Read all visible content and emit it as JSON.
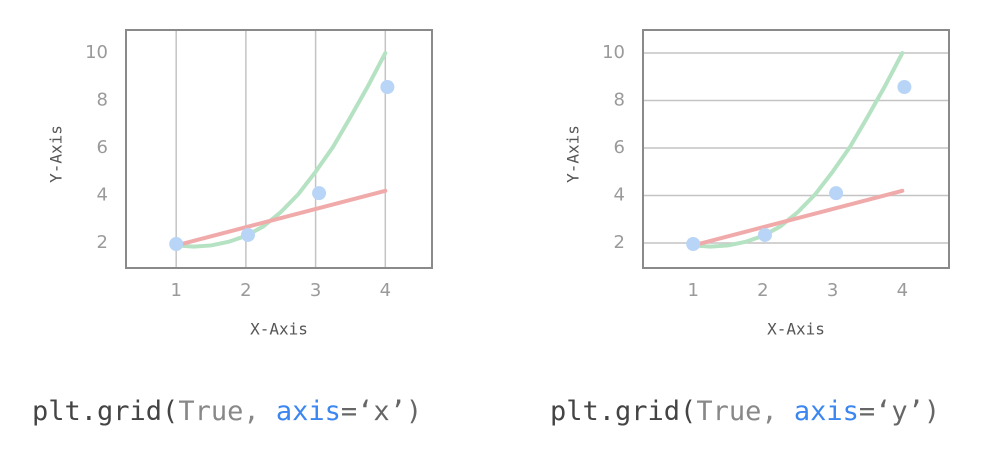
{
  "chart_data": [
    {
      "type": "mixed",
      "xlabel": "X-Axis",
      "ylabel": "Y-Axis",
      "xlim": [
        0.28,
        4.67
      ],
      "ylim": [
        0.95,
        10.97
      ],
      "xticks": [
        1,
        2,
        3,
        4
      ],
      "yticks": [
        2,
        4,
        6,
        8,
        10
      ],
      "grid": true,
      "grid_axis": "x",
      "series": [
        {
          "type": "line",
          "color": "#b5e2c2",
          "x": [
            1,
            1.25,
            1.5,
            1.75,
            2,
            2.25,
            2.5,
            2.75,
            3,
            3.25,
            3.5,
            3.75,
            4
          ],
          "values": [
            1.9,
            1.85,
            1.9,
            2.05,
            2.3,
            2.7,
            3.3,
            4.05,
            5.0,
            6.05,
            7.3,
            8.6,
            10
          ]
        },
        {
          "type": "line",
          "color": "#f0aaaa",
          "x": [
            1,
            4
          ],
          "values": [
            1.9,
            4.2
          ]
        },
        {
          "type": "scatter",
          "color": "#b8d5f7",
          "x": [
            1,
            2.03,
            3.05,
            4.03
          ],
          "values": [
            1.96,
            2.34,
            4.1,
            8.57
          ]
        }
      ],
      "caption": [
        "plt.grid(",
        "True, ",
        "axis",
        "=‘x’)"
      ]
    },
    {
      "type": "mixed",
      "xlabel": "X-Axis",
      "ylabel": "Y-Axis",
      "xlim": [
        0.28,
        4.67
      ],
      "ylim": [
        0.95,
        10.97
      ],
      "xticks": [
        1,
        2,
        3,
        4
      ],
      "yticks": [
        2,
        4,
        6,
        8,
        10
      ],
      "grid": true,
      "grid_axis": "y",
      "series": [
        {
          "type": "line",
          "color": "#b5e2c2",
          "x": [
            1,
            1.25,
            1.5,
            1.75,
            2,
            2.25,
            2.5,
            2.75,
            3,
            3.25,
            3.5,
            3.75,
            4
          ],
          "values": [
            1.9,
            1.85,
            1.9,
            2.05,
            2.3,
            2.7,
            3.3,
            4.05,
            5.0,
            6.05,
            7.3,
            8.6,
            10
          ]
        },
        {
          "type": "line",
          "color": "#f0aaaa",
          "x": [
            1,
            4
          ],
          "values": [
            1.9,
            4.2
          ]
        },
        {
          "type": "scatter",
          "color": "#b8d5f7",
          "x": [
            1,
            2.03,
            3.05,
            4.03
          ],
          "values": [
            1.96,
            2.34,
            4.1,
            8.57
          ]
        }
      ],
      "caption": [
        "plt.grid(",
        "True, ",
        "axis",
        "=‘y’)"
      ]
    }
  ]
}
